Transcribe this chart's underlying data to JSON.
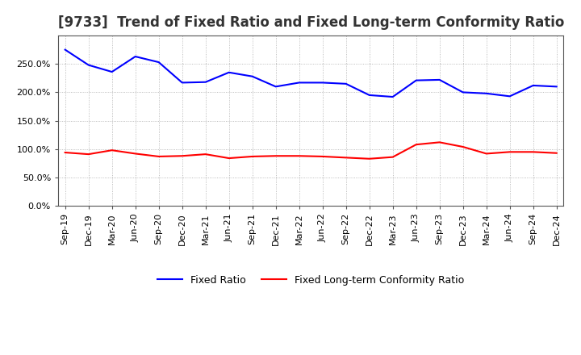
{
  "title": "[9733]  Trend of Fixed Ratio and Fixed Long-term Conformity Ratio",
  "x_labels": [
    "Sep-19",
    "Dec-19",
    "Mar-20",
    "Jun-20",
    "Sep-20",
    "Dec-20",
    "Mar-21",
    "Jun-21",
    "Sep-21",
    "Dec-21",
    "Mar-22",
    "Jun-22",
    "Sep-22",
    "Dec-22",
    "Mar-23",
    "Jun-23",
    "Sep-23",
    "Dec-23",
    "Mar-24",
    "Jun-24",
    "Sep-24",
    "Dec-24"
  ],
  "fixed_ratio": [
    275.0,
    248.0,
    236.0,
    263.0,
    253.0,
    217.0,
    218.0,
    235.0,
    228.0,
    210.0,
    217.0,
    217.0,
    215.0,
    195.0,
    192.0,
    221.0,
    222.0,
    200.0,
    198.0,
    193.0,
    212.0,
    210.0
  ],
  "fixed_lt_ratio": [
    94.0,
    91.0,
    98.0,
    92.0,
    87.0,
    88.0,
    91.0,
    84.0,
    87.0,
    88.0,
    88.0,
    87.0,
    85.0,
    83.0,
    86.0,
    108.0,
    112.0,
    104.0,
    92.0,
    95.0,
    95.0,
    93.0
  ],
  "blue_color": "#0000FF",
  "red_color": "#FF0000",
  "bg_color": "#FFFFFF",
  "plot_bg_color": "#FFFFFF",
  "grid_color": "#AAAAAA",
  "ylim": [
    0.0,
    300.0
  ],
  "yticks": [
    0.0,
    50.0,
    100.0,
    150.0,
    200.0,
    250.0
  ],
  "legend_fixed_ratio": "Fixed Ratio",
  "legend_fixed_lt": "Fixed Long-term Conformity Ratio",
  "title_fontsize": 12,
  "legend_fontsize": 9,
  "tick_fontsize": 8,
  "linewidth": 1.5
}
